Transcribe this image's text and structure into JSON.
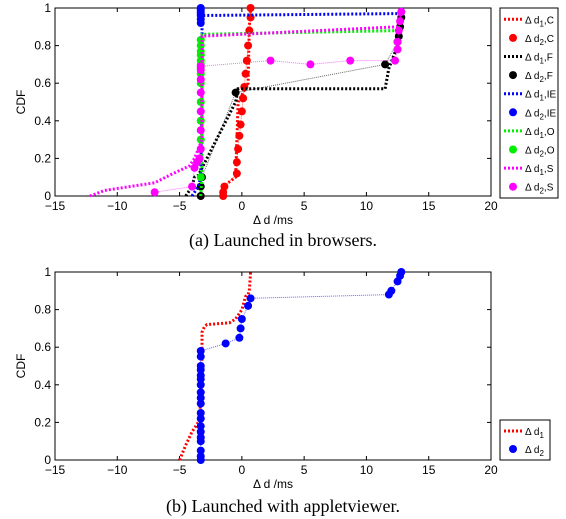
{
  "chart_data": [
    {
      "type": "line",
      "panel": "a",
      "caption": "(a) Launched in browsers.",
      "xlabel": "Δ d /ms",
      "ylabel": "CDF",
      "xlim": [
        -15,
        20
      ],
      "ylim": [
        0,
        1
      ],
      "xticks": [
        "−15",
        "−10",
        "−5",
        "0",
        "5",
        "10",
        "15",
        "20"
      ],
      "yticks": [
        "0",
        "0.2",
        "0.4",
        "0.6",
        "0.8",
        "1"
      ],
      "legend_position": "outside-right",
      "series": [
        {
          "name": "Δ d1,C",
          "sub": "1",
          "suffix": ",C",
          "color": "#ff0000",
          "style": "dotted",
          "x": [
            -1.5,
            -1.5,
            -0.5,
            -0.4,
            -0.3,
            0.5,
            0.6,
            0.7
          ],
          "y": [
            0.0,
            0.05,
            0.1,
            0.3,
            0.5,
            0.6,
            0.9,
            1.0
          ]
        },
        {
          "name": "Δ d2,C",
          "sub": "2",
          "suffix": ",C",
          "color": "#ff0000",
          "style": "markers",
          "x": [
            -1.5,
            -1.5,
            -1.4,
            -0.4,
            -0.4,
            -0.3,
            -0.2,
            -0.1,
            0.0,
            0.1,
            0.2,
            0.3,
            0.4,
            0.5,
            0.6,
            0.7,
            0.7
          ],
          "y": [
            0.0,
            0.02,
            0.05,
            0.12,
            0.18,
            0.25,
            0.32,
            0.38,
            0.45,
            0.52,
            0.58,
            0.65,
            0.72,
            0.8,
            0.88,
            0.95,
            1.0
          ]
        },
        {
          "name": "Δ d1,F",
          "sub": "1",
          "suffix": ",F",
          "color": "#000000",
          "style": "dotted",
          "x": [
            -4.5,
            -4.0,
            -3.8,
            -3.5,
            -0.5,
            -0.3,
            11.5,
            11.8,
            12.5,
            12.8
          ],
          "y": [
            0.0,
            0.05,
            0.1,
            0.11,
            0.5,
            0.57,
            0.57,
            0.68,
            0.8,
            1.0
          ]
        },
        {
          "name": "Δ d2,F",
          "sub": "2",
          "suffix": ",F",
          "color": "#000000",
          "style": "markers",
          "x": [
            -3.3,
            -3.3,
            -3.2,
            -0.5,
            11.5,
            12.5,
            12.6,
            12.7,
            12.8
          ],
          "y": [
            0.0,
            0.05,
            0.1,
            0.55,
            0.7,
            0.82,
            0.85,
            0.9,
            0.95
          ]
        },
        {
          "name": "Δ d1,IE",
          "sub": "1",
          "suffix": ",IE",
          "color": "#0000ff",
          "style": "dotted",
          "x": [
            -4.0,
            -3.5,
            -3.3,
            -3.2,
            -3.2,
            12.5,
            12.8
          ],
          "y": [
            0.0,
            0.05,
            0.1,
            0.5,
            0.96,
            0.97,
            1.0
          ]
        },
        {
          "name": "Δ d2,IE",
          "sub": "2",
          "suffix": ",IE",
          "color": "#0000ff",
          "style": "markers",
          "x": [
            -3.3,
            -3.3,
            -3.3,
            -3.3,
            -3.3,
            -3.3,
            -3.3
          ],
          "y": [
            0.92,
            0.94,
            0.96,
            0.97,
            0.98,
            0.99,
            1.0
          ]
        },
        {
          "name": "Δ d1,O",
          "sub": "1",
          "suffix": ",O",
          "color": "#00ee00",
          "style": "dotted",
          "x": [
            -3.3,
            -3.2,
            -3.2,
            12.5,
            12.8
          ],
          "y": [
            0.0,
            0.1,
            0.86,
            0.88,
            1.0
          ]
        },
        {
          "name": "Δ d2,O",
          "sub": "2",
          "suffix": ",O",
          "color": "#00ee00",
          "style": "markers",
          "x": [
            -3.3,
            -3.3,
            -3.3,
            -3.3,
            -3.3,
            -3.3,
            -3.3,
            -3.3,
            -3.3,
            -3.3,
            -3.3,
            -3.3,
            -3.3
          ],
          "y": [
            0.1,
            0.3,
            0.4,
            0.5,
            0.6,
            0.65,
            0.68,
            0.7,
            0.72,
            0.75,
            0.77,
            0.8,
            0.83
          ]
        },
        {
          "name": "Δ d1,S",
          "sub": "1",
          "suffix": ",S",
          "color": "#ff00ff",
          "style": "dotted",
          "x": [
            -12.2,
            -11.0,
            -9.0,
            -7.0,
            -5.5,
            -4.2,
            -3.8,
            -3.5,
            -3.2,
            -3.2,
            12.5,
            12.8
          ],
          "y": [
            0.0,
            0.03,
            0.05,
            0.07,
            0.12,
            0.16,
            0.2,
            0.25,
            0.3,
            0.85,
            0.9,
            1.0
          ]
        },
        {
          "name": "Δ d2,S",
          "sub": "2",
          "suffix": ",S",
          "color": "#ff00ff",
          "style": "markers",
          "x": [
            -7.0,
            -4.0,
            -3.8,
            -3.6,
            -3.4,
            -3.3,
            -3.3,
            -3.3,
            -3.3,
            -3.3,
            -3.3,
            -3.3,
            2.3,
            5.5,
            8.7,
            12.3,
            12.5,
            12.5,
            12.6,
            12.7,
            12.8
          ],
          "y": [
            0.02,
            0.05,
            0.15,
            0.18,
            0.2,
            0.25,
            0.35,
            0.45,
            0.55,
            0.62,
            0.67,
            0.69,
            0.72,
            0.7,
            0.72,
            0.72,
            0.78,
            0.82,
            0.88,
            0.93,
            0.98
          ]
        }
      ]
    },
    {
      "type": "line",
      "panel": "b",
      "caption": "(b) Launched with appletviewer.",
      "xlabel": "Δ d /ms",
      "ylabel": "CDF",
      "xlim": [
        -15,
        20
      ],
      "ylim": [
        0,
        1
      ],
      "xticks": [
        "−15",
        "−10",
        "−5",
        "0",
        "5",
        "10",
        "15",
        "20"
      ],
      "yticks": [
        "0",
        "0.2",
        "0.4",
        "0.6",
        "0.8",
        "1"
      ],
      "legend_position": "bottom-right",
      "series": [
        {
          "name": "Δ d1",
          "sub": "1",
          "suffix": "",
          "color": "#ff0000",
          "style": "dotted",
          "x": [
            -5.0,
            -4.5,
            -4.0,
            -3.5,
            -3.3,
            -3.2,
            -3.2,
            -3.0,
            -2.8,
            -1.0,
            -0.5,
            0.0,
            0.3,
            0.5,
            0.6,
            0.7
          ],
          "y": [
            0.0,
            0.08,
            0.15,
            0.2,
            0.3,
            0.5,
            0.68,
            0.71,
            0.72,
            0.73,
            0.75,
            0.8,
            0.87,
            0.88,
            0.9,
            1.0
          ]
        },
        {
          "name": "Δ d2",
          "sub": "2",
          "suffix": "",
          "color": "#0000ff",
          "style": "markers",
          "x": [
            -3.3,
            -3.3,
            -3.3,
            -3.3,
            -3.3,
            -3.3,
            -3.3,
            -3.3,
            -3.3,
            -3.3,
            -3.3,
            -3.3,
            -3.3,
            -3.3,
            -3.3,
            -3.3,
            -3.3,
            -3.3,
            -3.3,
            -1.3,
            -0.2,
            -0.1,
            0.0,
            0.5,
            0.7,
            11.8,
            12.0,
            12.5,
            12.7,
            12.8
          ],
          "y": [
            0.0,
            0.02,
            0.05,
            0.1,
            0.12,
            0.15,
            0.18,
            0.22,
            0.25,
            0.3,
            0.33,
            0.36,
            0.4,
            0.43,
            0.45,
            0.48,
            0.5,
            0.55,
            0.58,
            0.62,
            0.65,
            0.7,
            0.75,
            0.82,
            0.86,
            0.88,
            0.9,
            0.95,
            0.98,
            1.0
          ]
        }
      ]
    }
  ]
}
